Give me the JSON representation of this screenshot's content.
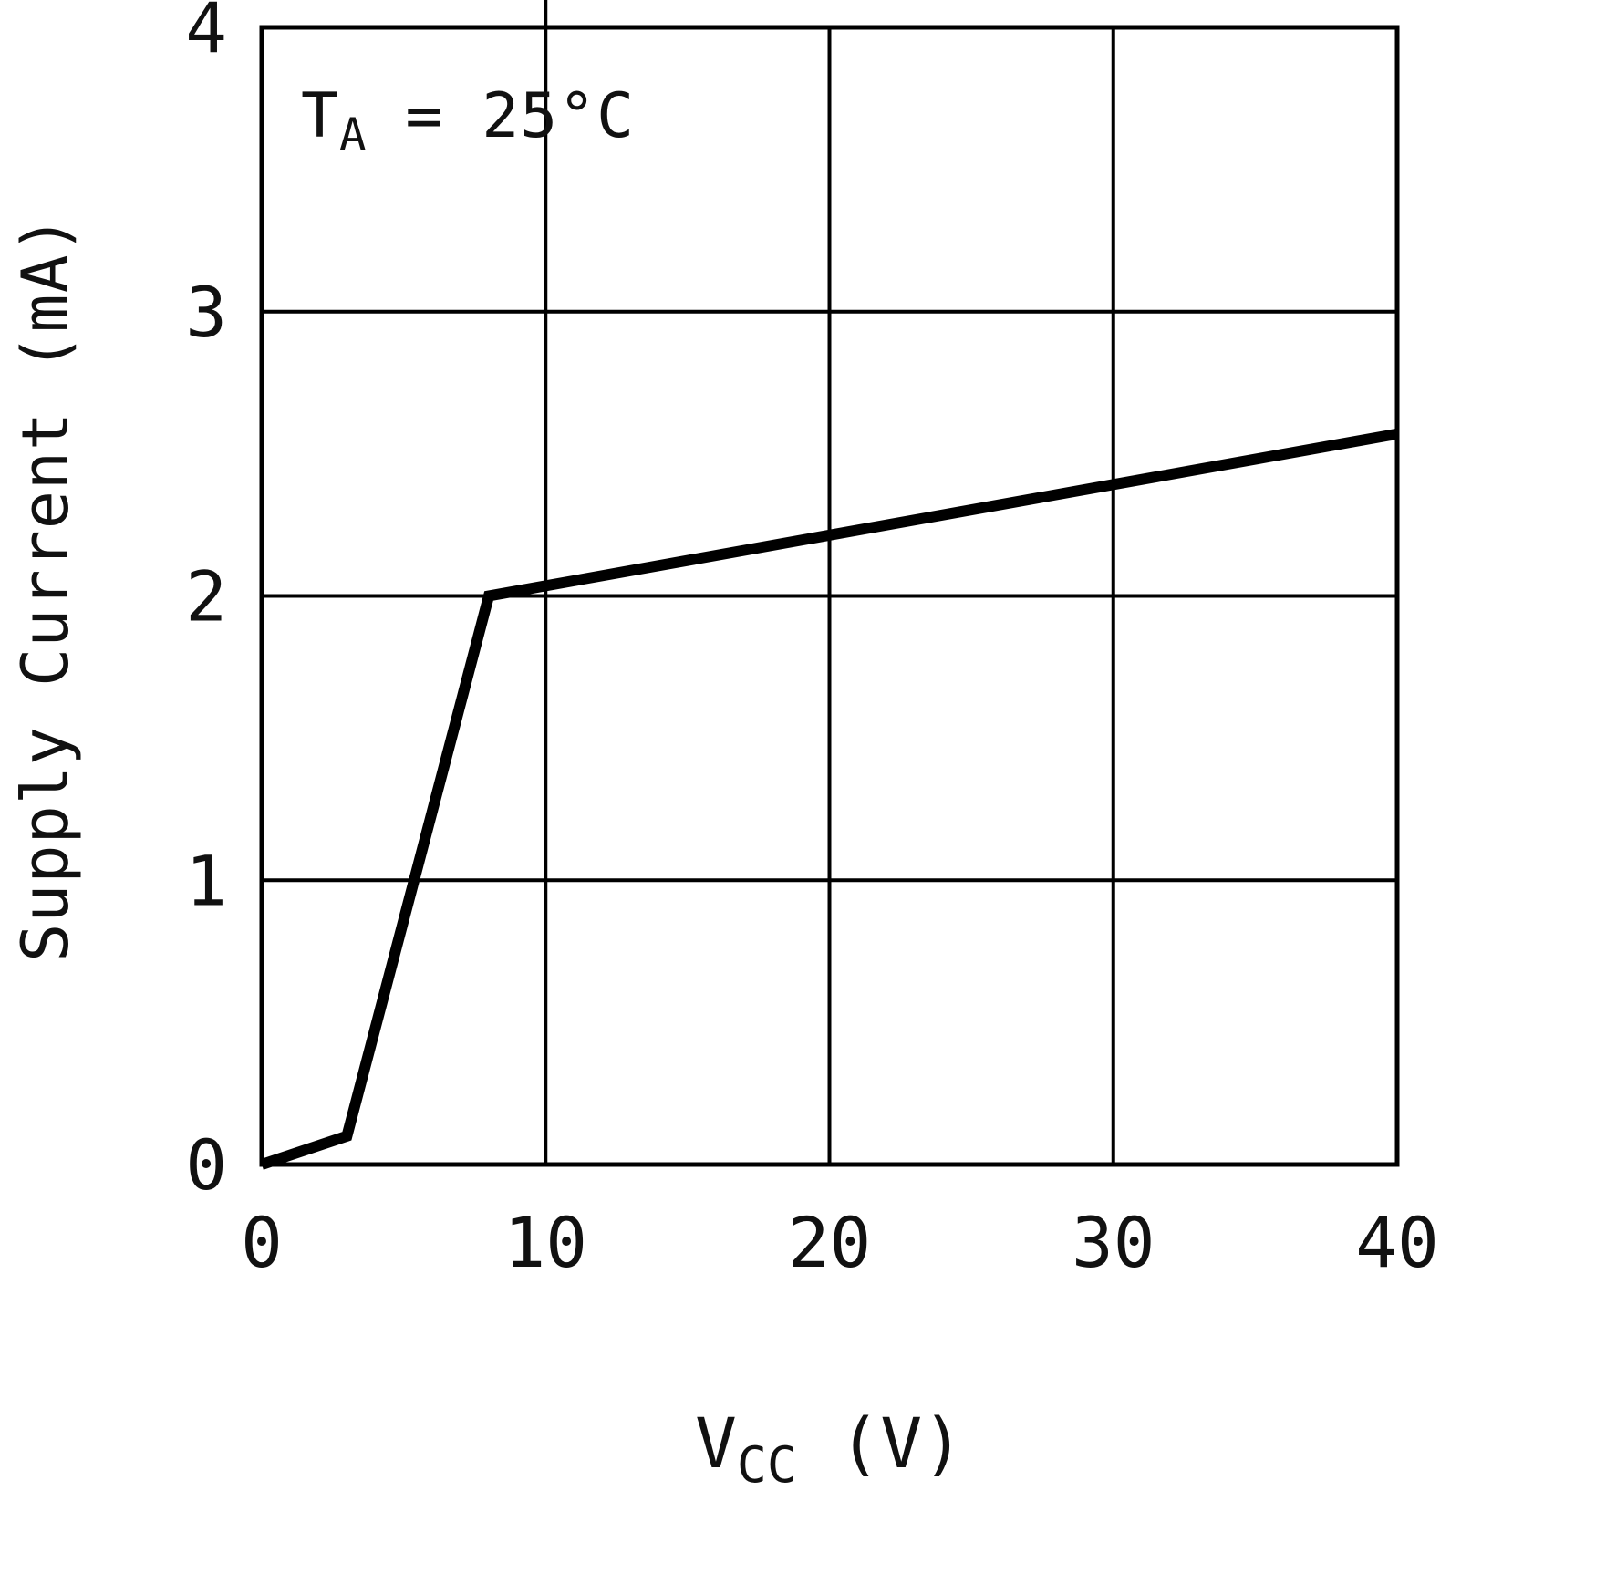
{
  "chart_data": {
    "type": "line",
    "title": "",
    "annotation": "TA = 25°C",
    "annotation_parts": {
      "base": "T",
      "sub": "A",
      "rest": " = 25°C"
    },
    "xlabel": "VCC (V)",
    "xlabel_parts": {
      "base": "V",
      "sub": "CC",
      "rest": " (V)"
    },
    "ylabel": "Supply Current (mA)",
    "xlim": [
      0,
      40
    ],
    "ylim": [
      0,
      4
    ],
    "xticks": [
      0,
      10,
      20,
      30,
      40
    ],
    "yticks": [
      0,
      1,
      2,
      3,
      4
    ],
    "grid": true,
    "legend": false,
    "top_tick_x": 10,
    "colors": {
      "grid": "#000000",
      "border": "#000000",
      "text": "#111111",
      "line": "#000000"
    },
    "series": [
      {
        "name": "supply-current",
        "color": "#000000",
        "stroke_width": 12,
        "x": [
          0,
          3,
          8,
          40
        ],
        "y": [
          0,
          0.1,
          2.0,
          2.57
        ]
      }
    ]
  }
}
